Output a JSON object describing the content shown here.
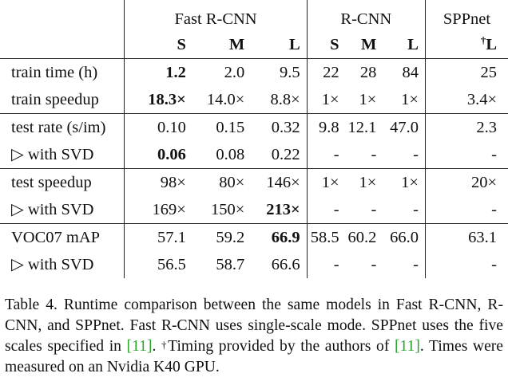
{
  "table": {
    "groups": {
      "fast": "Fast R-CNN",
      "rcnn": "R-CNN",
      "spp": "SPPnet"
    },
    "sizes": {
      "fs": "S",
      "fm": "M",
      "fl": "L",
      "rs": "S",
      "rm": "M",
      "rl": "L",
      "spp_dagger": "†",
      "spp": "L"
    },
    "rows": [
      {
        "label": "train time (h)",
        "fs": "1.2",
        "fm": "2.0",
        "fl": "9.5",
        "rs": "22",
        "rm": "28",
        "rl": "84",
        "sp": "25"
      },
      {
        "label": "train speedup",
        "fs": "18.3×",
        "fm": "14.0×",
        "fl": "8.8×",
        "rs": "1×",
        "rm": "1×",
        "rl": "1×",
        "sp": "3.4×"
      },
      {
        "label": "test rate (s/im)",
        "fs": "0.10",
        "fm": "0.15",
        "fl": "0.32",
        "rs": "9.8",
        "rm": "12.1",
        "rl": "47.0",
        "sp": "2.3"
      },
      {
        "label": "▷ with SVD",
        "fs": "0.06",
        "fm": "0.08",
        "fl": "0.22",
        "rs": "-",
        "rm": "-",
        "rl": "-",
        "sp": "-"
      },
      {
        "label": "test speedup",
        "fs": "98×",
        "fm": "80×",
        "fl": "146×",
        "rs": "1×",
        "rm": "1×",
        "rl": "1×",
        "sp": "20×"
      },
      {
        "label": "▷ with SVD",
        "fs": "169×",
        "fm": "150×",
        "fl": "213×",
        "rs": "-",
        "rm": "-",
        "rl": "-",
        "sp": "-"
      },
      {
        "label": "VOC07 mAP",
        "fs": "57.1",
        "fm": "59.2",
        "fl": "66.9",
        "rs": "58.5",
        "rm": "60.2",
        "rl": "66.0",
        "sp": "63.1"
      },
      {
        "label": "▷ with SVD",
        "fs": "56.5",
        "fm": "58.7",
        "fl": "66.6",
        "rs": "-",
        "rm": "-",
        "rl": "-",
        "sp": "-"
      }
    ]
  },
  "caption": {
    "part1": "Table 4. Runtime comparison between the same models in Fast R-CNN, R-CNN, and SPPnet. Fast R-CNN uses single-scale mode. SPPnet uses the five scales specified in ",
    "cite1": "[11]",
    "part2": ". ",
    "dagger": "†",
    "part3": "Timing provided by the authors of ",
    "cite2": "[11]",
    "part4": ". Times were measured on an Nvidia K40 GPU."
  }
}
